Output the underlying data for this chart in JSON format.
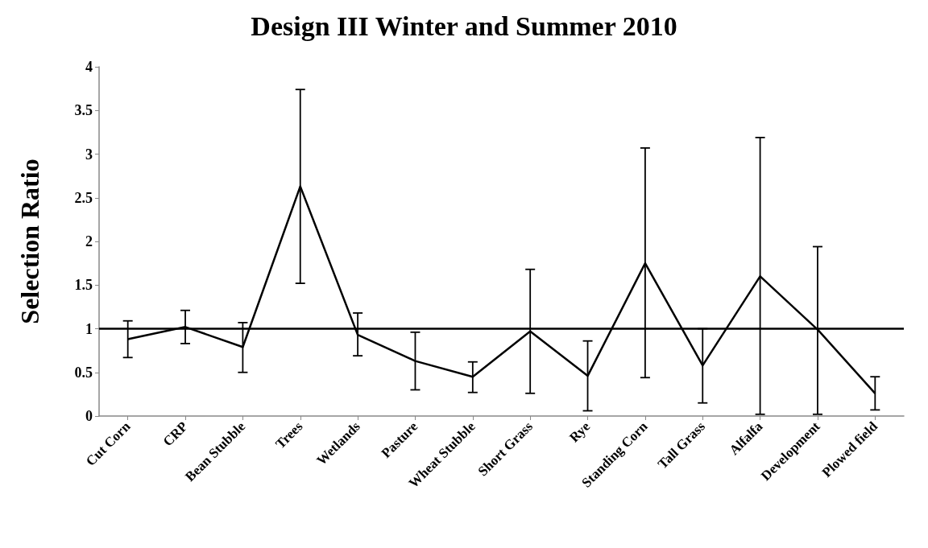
{
  "chart_data": {
    "type": "line",
    "title": "Design III Winter and Summer 2010",
    "ylabel": "Selection Ratio",
    "categories": [
      "Cut Corn",
      "CRP",
      "Bean Stubble",
      "Trees",
      "Wetlands",
      "Pasture",
      "Wheat Stubble",
      "Short Grass",
      "Rye",
      "Standing Corn",
      "Tall Grass",
      "Alfalfa",
      "Development",
      "Plowed field"
    ],
    "series": [
      {
        "color": "#000000",
        "values": [
          0.88,
          1.02,
          0.79,
          2.63,
          0.93,
          0.63,
          0.45,
          0.97,
          0.46,
          1.75,
          0.58,
          1.6,
          0.99,
          0.26
        ],
        "errors": [
          [
            0.67,
            1.09
          ],
          [
            0.83,
            1.21
          ],
          [
            0.5,
            1.07
          ],
          [
            1.52,
            3.74
          ],
          [
            0.69,
            1.18
          ],
          [
            0.3,
            0.96
          ],
          [
            0.27,
            0.62
          ],
          [
            0.26,
            1.68
          ],
          [
            0.06,
            0.86
          ],
          [
            0.44,
            3.07
          ],
          [
            0.15,
            1.0
          ],
          [
            0.02,
            3.19
          ],
          [
            0.02,
            1.94
          ],
          [
            0.07,
            0.45
          ]
        ]
      }
    ],
    "ylim": [
      0,
      4
    ],
    "yticks": [
      0,
      0.5,
      1,
      1.5,
      2,
      2.5,
      3,
      3.5,
      4
    ],
    "ref_lines": [
      {
        "axis": "y",
        "value": 1,
        "color": "#000000"
      }
    ],
    "grid": false,
    "marker": "none",
    "line_style": "solid"
  }
}
